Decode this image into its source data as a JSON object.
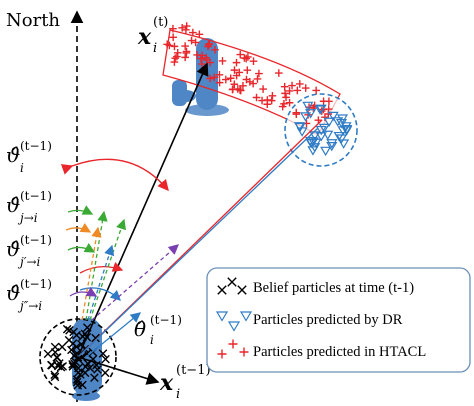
{
  "labels": {
    "north": "North",
    "x_t": "x",
    "x_t_sup": "(t)",
    "x_t_sub": "i",
    "x_tm1": "x",
    "x_tm1_sup": "(t−1)",
    "x_tm1_sub": "i",
    "theta_i": "θ̂",
    "theta_i_sup": "(t−1)",
    "theta_i_sub": "i",
    "v_i": "ϑ̂",
    "v_i_sup": "(t−1)",
    "v_i_sub": "i",
    "v_ji": "ϑ̂",
    "v_ji_sup": "(t−1)",
    "v_ji_sub": "j→i",
    "v_jpi": "ϑ̂",
    "v_jpi_sup": "(t−1)",
    "v_jpi_sub": "j′→i",
    "v_jppi": "ϑ̂",
    "v_jppi_sup": "(t−1)",
    "v_jppi_sub": "j″→i"
  },
  "legend": [
    {
      "marker": "black-cross",
      "text": "Belief particles at time (t-1)"
    },
    {
      "marker": "blue-triangle",
      "text": "Particles predicted by DR"
    },
    {
      "marker": "red-plus",
      "text": "Particles predicted in HTACL"
    }
  ],
  "colors": {
    "black": "#000000",
    "red": "#e8262b",
    "blue": "#2f7cc6",
    "green": "#3aaa35",
    "orange": "#f08a24",
    "purple": "#7a3fb0",
    "robot": "#4f86c6",
    "legend_border": "#6a8fb8"
  }
}
